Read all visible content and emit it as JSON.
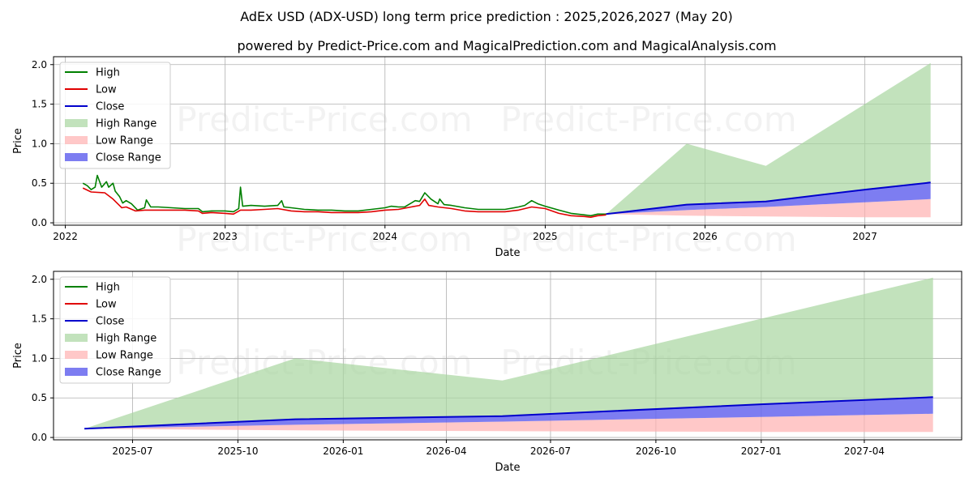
{
  "title": "AdEx USD (ADX-USD) long term price prediction : 2025,2026,2027 (May 20)",
  "subtitle": "powered by Predict-Price.com and MagicalPrediction.com and MagicalAnalysis.com",
  "watermark": "Predict-Price.com",
  "colors": {
    "high": "#008000",
    "low": "#e00000",
    "close": "#0000cc",
    "high_range": "#a8d5a0",
    "low_range": "#ffb0b0",
    "close_range": "#6666ee"
  },
  "chart_data": [
    {
      "type": "line",
      "xlabel": "Date",
      "ylabel": "Price",
      "xlim": [
        "2021-12-05",
        "2027-08-10"
      ],
      "ylim": [
        -0.03,
        2.1
      ],
      "grid": true,
      "legend_position": "top-left",
      "x_ticks": [
        {
          "label": "2022",
          "date": "2022-01-01"
        },
        {
          "label": "2023",
          "date": "2023-01-01"
        },
        {
          "label": "2024",
          "date": "2024-01-01"
        },
        {
          "label": "2025",
          "date": "2025-01-01"
        },
        {
          "label": "2026",
          "date": "2026-01-01"
        },
        {
          "label": "2027",
          "date": "2027-01-01"
        }
      ],
      "y_ticks": [
        0.0,
        0.5,
        1.0,
        1.5,
        2.0
      ],
      "y_tick_labels": [
        "0.0",
        "0.5",
        "1.0",
        "1.5",
        "2.0"
      ],
      "series": [
        {
          "name": "High",
          "x": [
            "2022-02-10",
            "2022-02-20",
            "2022-03-01",
            "2022-03-10",
            "2022-03-15",
            "2022-03-25",
            "2022-04-05",
            "2022-04-10",
            "2022-04-20",
            "2022-04-25",
            "2022-05-05",
            "2022-05-12",
            "2022-05-20",
            "2022-06-01",
            "2022-06-15",
            "2022-07-01",
            "2022-07-05",
            "2022-07-15",
            "2022-08-01",
            "2022-09-01",
            "2022-10-01",
            "2022-11-01",
            "2022-11-10",
            "2022-12-01",
            "2023-01-01",
            "2023-01-20",
            "2023-02-01",
            "2023-02-05",
            "2023-02-10",
            "2023-03-01",
            "2023-04-01",
            "2023-05-01",
            "2023-05-10",
            "2023-05-15",
            "2023-06-01",
            "2023-07-01",
            "2023-08-01",
            "2023-09-01",
            "2023-10-01",
            "2023-11-01",
            "2023-12-01",
            "2024-01-01",
            "2024-01-15",
            "2024-02-01",
            "2024-02-15",
            "2024-03-01",
            "2024-03-10",
            "2024-03-20",
            "2024-04-01",
            "2024-04-15",
            "2024-05-01",
            "2024-05-05",
            "2024-05-15",
            "2024-06-01",
            "2024-07-01",
            "2024-08-01",
            "2024-09-01",
            "2024-10-01",
            "2024-11-01",
            "2024-11-15",
            "2024-12-01",
            "2024-12-15",
            "2025-01-01",
            "2025-02-01",
            "2025-03-01",
            "2025-03-15",
            "2025-04-01",
            "2025-04-15",
            "2025-05-01",
            "2025-05-20"
          ],
          "y": [
            0.5,
            0.47,
            0.42,
            0.45,
            0.6,
            0.45,
            0.52,
            0.45,
            0.5,
            0.4,
            0.33,
            0.25,
            0.28,
            0.24,
            0.16,
            0.19,
            0.29,
            0.2,
            0.2,
            0.19,
            0.18,
            0.18,
            0.14,
            0.15,
            0.15,
            0.14,
            0.18,
            0.45,
            0.21,
            0.22,
            0.21,
            0.22,
            0.28,
            0.2,
            0.19,
            0.17,
            0.16,
            0.16,
            0.15,
            0.15,
            0.17,
            0.19,
            0.21,
            0.2,
            0.2,
            0.25,
            0.28,
            0.27,
            0.38,
            0.3,
            0.24,
            0.3,
            0.23,
            0.22,
            0.19,
            0.17,
            0.17,
            0.17,
            0.2,
            0.22,
            0.28,
            0.24,
            0.21,
            0.16,
            0.12,
            0.11,
            0.1,
            0.09,
            0.11,
            0.11
          ]
        },
        {
          "name": "Low",
          "x": [
            "2022-02-10",
            "2022-03-01",
            "2022-04-01",
            "2022-04-20",
            "2022-05-10",
            "2022-05-20",
            "2022-06-10",
            "2022-07-01",
            "2022-08-01",
            "2022-09-01",
            "2022-10-01",
            "2022-11-01",
            "2022-11-10",
            "2022-12-01",
            "2023-01-01",
            "2023-01-20",
            "2023-02-05",
            "2023-03-01",
            "2023-04-01",
            "2023-05-01",
            "2023-06-01",
            "2023-07-01",
            "2023-08-01",
            "2023-09-01",
            "2023-10-01",
            "2023-11-01",
            "2023-12-01",
            "2024-01-01",
            "2024-02-01",
            "2024-03-01",
            "2024-03-20",
            "2024-04-01",
            "2024-04-10",
            "2024-05-01",
            "2024-06-01",
            "2024-07-01",
            "2024-08-01",
            "2024-09-01",
            "2024-10-01",
            "2024-11-01",
            "2024-12-01",
            "2025-01-01",
            "2025-02-01",
            "2025-03-01",
            "2025-04-01",
            "2025-04-15",
            "2025-05-01",
            "2025-05-20"
          ],
          "y": [
            0.44,
            0.39,
            0.38,
            0.3,
            0.19,
            0.2,
            0.15,
            0.16,
            0.16,
            0.16,
            0.16,
            0.15,
            0.12,
            0.13,
            0.12,
            0.11,
            0.16,
            0.16,
            0.17,
            0.18,
            0.15,
            0.14,
            0.14,
            0.13,
            0.13,
            0.13,
            0.14,
            0.16,
            0.17,
            0.2,
            0.22,
            0.3,
            0.22,
            0.2,
            0.18,
            0.15,
            0.14,
            0.14,
            0.14,
            0.16,
            0.2,
            0.18,
            0.12,
            0.09,
            0.08,
            0.07,
            0.09,
            0.1
          ]
        },
        {
          "name": "Close",
          "x": [
            "2025-05-20",
            "2025-11-20",
            "2026-05-20",
            "2027-01-01",
            "2027-05-31"
          ],
          "y": [
            0.11,
            0.23,
            0.27,
            0.42,
            0.51
          ]
        },
        {
          "name": "High Range",
          "type": "area",
          "x": [
            "2025-05-20",
            "2025-11-20",
            "2026-05-20",
            "2027-05-31"
          ],
          "upper": [
            0.11,
            1.0,
            0.72,
            2.02
          ],
          "lower": [
            0.11,
            0.23,
            0.27,
            0.51
          ]
        },
        {
          "name": "Low Range",
          "type": "area",
          "x": [
            "2025-05-20",
            "2025-11-20",
            "2026-05-20",
            "2027-01-01",
            "2027-05-31"
          ],
          "upper": [
            0.11,
            0.16,
            0.2,
            0.26,
            0.3
          ],
          "lower": [
            0.11,
            0.09,
            0.08,
            0.07,
            0.07
          ]
        },
        {
          "name": "Close Range",
          "type": "area",
          "x": [
            "2025-05-20",
            "2025-11-20",
            "2026-05-20",
            "2027-01-01",
            "2027-05-31"
          ],
          "upper": [
            0.11,
            0.23,
            0.27,
            0.42,
            0.51
          ],
          "lower": [
            0.11,
            0.16,
            0.2,
            0.26,
            0.3
          ]
        }
      ]
    },
    {
      "type": "line",
      "xlabel": "Date",
      "ylabel": "Price",
      "xlim": [
        "2025-04-23",
        "2027-06-25"
      ],
      "ylim": [
        -0.03,
        2.1
      ],
      "grid": true,
      "legend_position": "top-left",
      "x_ticks": [
        {
          "label": "2025-07",
          "date": "2025-07-01"
        },
        {
          "label": "2025-10",
          "date": "2025-10-01"
        },
        {
          "label": "2026-01",
          "date": "2026-01-01"
        },
        {
          "label": "2026-04",
          "date": "2026-04-01"
        },
        {
          "label": "2026-07",
          "date": "2026-07-01"
        },
        {
          "label": "2026-10",
          "date": "2026-10-01"
        },
        {
          "label": "2027-01",
          "date": "2027-01-01"
        },
        {
          "label": "2027-04",
          "date": "2027-04-01"
        }
      ],
      "y_ticks": [
        0.0,
        0.5,
        1.0,
        1.5,
        2.0
      ],
      "y_tick_labels": [
        "0.0",
        "0.5",
        "1.0",
        "1.5",
        "2.0"
      ],
      "series": [
        {
          "name": "High",
          "x": [],
          "y": []
        },
        {
          "name": "Low",
          "x": [],
          "y": []
        },
        {
          "name": "Close",
          "x": [
            "2025-05-20",
            "2025-11-20",
            "2026-05-20",
            "2027-01-01",
            "2027-05-31"
          ],
          "y": [
            0.11,
            0.23,
            0.27,
            0.42,
            0.51
          ]
        },
        {
          "name": "High Range",
          "type": "area",
          "x": [
            "2025-05-20",
            "2025-11-20",
            "2026-05-20",
            "2027-05-31"
          ],
          "upper": [
            0.11,
            1.0,
            0.72,
            2.02
          ],
          "lower": [
            0.11,
            0.23,
            0.27,
            0.51
          ]
        },
        {
          "name": "Low Range",
          "type": "area",
          "x": [
            "2025-05-20",
            "2025-11-20",
            "2026-05-20",
            "2027-01-01",
            "2027-05-31"
          ],
          "upper": [
            0.11,
            0.16,
            0.2,
            0.26,
            0.3
          ],
          "lower": [
            0.11,
            0.09,
            0.08,
            0.07,
            0.07
          ]
        },
        {
          "name": "Close Range",
          "type": "area",
          "x": [
            "2025-05-20",
            "2025-11-20",
            "2026-05-20",
            "2027-01-01",
            "2027-05-31"
          ],
          "upper": [
            0.11,
            0.23,
            0.27,
            0.42,
            0.51
          ],
          "lower": [
            0.11,
            0.16,
            0.2,
            0.26,
            0.3
          ]
        }
      ]
    }
  ]
}
